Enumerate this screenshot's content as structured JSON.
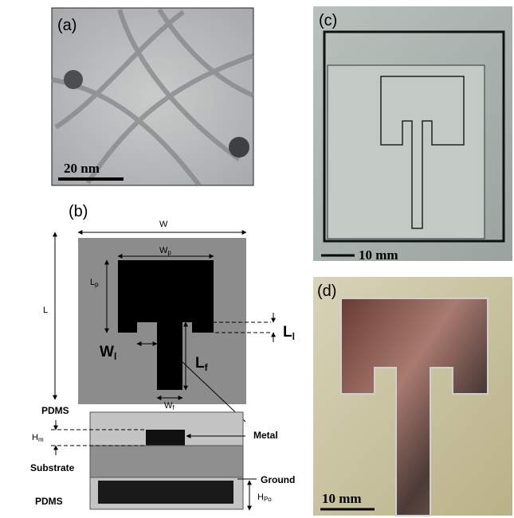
{
  "panels": {
    "a": {
      "label": "(a)",
      "scale_bar": "20 nm"
    },
    "b": {
      "label": "(b)",
      "dimensions": {
        "W": "W",
        "Wp": {
          "main": "W",
          "sub": "p"
        },
        "Lp": {
          "main": "L",
          "sub": "p"
        },
        "L": "L",
        "Ll": {
          "main": "L",
          "sub": "l"
        },
        "Wl": {
          "main": "W",
          "sub": "l"
        },
        "Lf": {
          "main": "L",
          "sub": "f"
        },
        "Wf": {
          "main": "W",
          "sub": "f"
        },
        "Hm": {
          "main": "H",
          "sub": "m"
        },
        "HPo": {
          "main": "H",
          "sub": "Po"
        }
      },
      "layers": {
        "top": "PDMS",
        "metal": "Metal",
        "substrate": "Substrate",
        "ground": "Ground",
        "bottom": "PDMS"
      }
    },
    "c": {
      "label": "(c)",
      "scale_bar": "10 mm"
    },
    "d": {
      "label": "(d)",
      "scale_bar": "10 mm"
    }
  }
}
